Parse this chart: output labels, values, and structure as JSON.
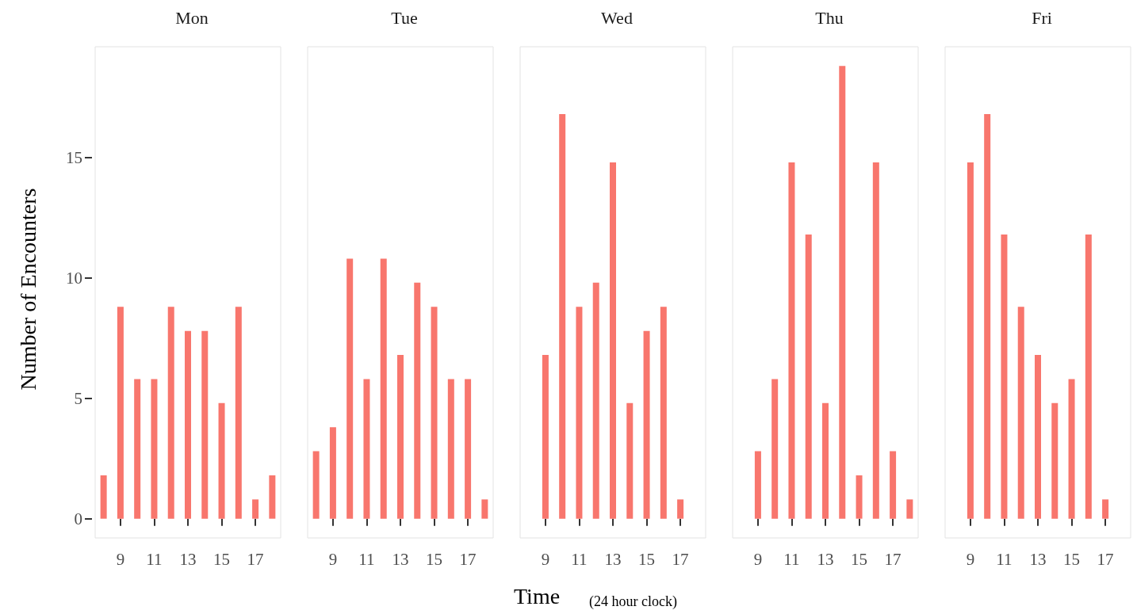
{
  "chart_data": [
    {
      "type": "bar",
      "title": "Mon",
      "ylabel": "Number of Encounters",
      "x": [
        8,
        9,
        10,
        11,
        12,
        13,
        14,
        15,
        16,
        17,
        18
      ],
      "values": [
        1.8,
        8.8,
        5.8,
        5.8,
        8.8,
        7.8,
        7.8,
        4.8,
        8.8,
        0.8,
        1.8
      ],
      "color": "#f8766d",
      "xlim": [
        7.5,
        18.5
      ],
      "xticks": [
        9,
        11,
        13,
        15,
        17
      ],
      "ylim": [
        -0.8,
        19.6
      ],
      "yticks": [
        0,
        5,
        10,
        15
      ],
      "grid": false
    },
    {
      "type": "bar",
      "title": "Tue",
      "x": [
        8,
        9,
        10,
        11,
        12,
        13,
        14,
        15,
        16,
        17,
        18
      ],
      "values": [
        2.8,
        3.8,
        10.8,
        5.8,
        10.8,
        6.8,
        9.8,
        8.8,
        5.8,
        5.8,
        0.8
      ],
      "color": "#f8766d",
      "xlim": [
        7.5,
        18.5
      ],
      "xticks": [
        9,
        11,
        13,
        15,
        17
      ],
      "ylim": [
        -0.8,
        19.6
      ],
      "tick_labels": "x",
      "grid": false
    },
    {
      "type": "bar",
      "title": "Wed",
      "xlabel": "Time",
      "annotations": [
        "(24 hour clock)"
      ],
      "x": [
        9,
        10,
        11,
        12,
        13,
        14,
        15,
        16,
        17
      ],
      "values": [
        6.8,
        16.8,
        8.8,
        9.8,
        14.8,
        4.8,
        7.8,
        8.8,
        0.8
      ],
      "color": "#f8766d",
      "xlim": [
        7.5,
        18.5
      ],
      "xticks": [
        9,
        11,
        13,
        15,
        17
      ],
      "ylim": [
        -0.8,
        19.6
      ],
      "tick_labels": "x",
      "grid": false
    },
    {
      "type": "bar",
      "title": "Thu",
      "x": [
        9,
        10,
        11,
        12,
        13,
        14,
        15,
        16,
        17,
        18
      ],
      "values": [
        2.8,
        5.8,
        14.8,
        11.8,
        4.8,
        18.8,
        1.8,
        14.8,
        2.8,
        0.8
      ],
      "color": "#f8766d",
      "xlim": [
        7.5,
        18.5
      ],
      "xticks": [
        9,
        11,
        13,
        15,
        17
      ],
      "ylim": [
        -0.8,
        19.6
      ],
      "tick_labels": "x",
      "grid": false
    },
    {
      "type": "bar",
      "title": "Fri",
      "x": [
        9,
        10,
        11,
        12,
        13,
        14,
        15,
        16,
        17
      ],
      "values": [
        14.8,
        16.8,
        11.8,
        8.8,
        6.8,
        4.8,
        5.8,
        11.8,
        0.8
      ],
      "color": "#f8766d",
      "xlim": [
        7.5,
        18.5
      ],
      "xticks": [
        9,
        11,
        13,
        15,
        17
      ],
      "ylim": [
        -0.8,
        19.6
      ],
      "tick_labels": "x",
      "grid": false
    }
  ]
}
